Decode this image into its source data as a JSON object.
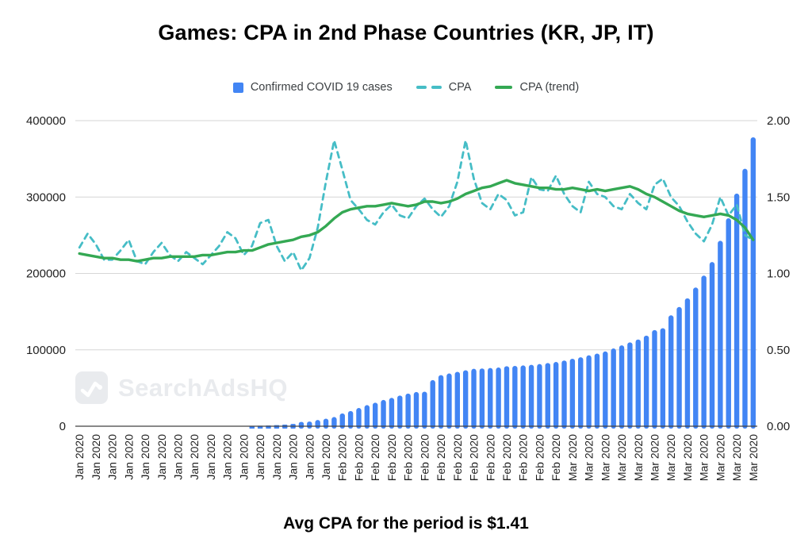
{
  "title": "Games: CPA in 2nd Phase Countries (KR, JP, IT)",
  "caption": "Avg CPA for the period is $1.41",
  "watermark": {
    "text": "SearchAdsHQ",
    "icon": "zigzag-line-chart-icon"
  },
  "legend": [
    {
      "label": "Confirmed COVID 19 cases",
      "swatch": "square",
      "color": "#4285F4"
    },
    {
      "label": "CPA",
      "swatch": "dashed-line",
      "color": "#46BDC6"
    },
    {
      "label": "CPA (trend)",
      "swatch": "solid-line",
      "color": "#34A853"
    }
  ],
  "colors": {
    "bar": "#4285F4",
    "cpa_line": "#46BDC6",
    "trend_line": "#34A853",
    "grid": "#d6d6d6",
    "axis_line": "#424242",
    "axis_text": "#1f1f1f",
    "watermark": "#e9ebee"
  },
  "chart_data": {
    "type": "combo-bar-line",
    "title": "Games: CPA in 2nd Phase Countries (KR, JP, IT)",
    "note": "Daily data Jan 1 - Mar 23 2020; x ticks show month-year on every 2nd day, rotated vertically",
    "grid": true,
    "legend_position": "top",
    "months": [
      {
        "label": "Jan 2020",
        "days": 31
      },
      {
        "label": "Feb 2020",
        "days": 29
      },
      {
        "label": "Mar 2020",
        "days": 23
      }
    ],
    "x_tick_every": 2,
    "left_axis": {
      "ticks": [
        "400000",
        "300000",
        "200000",
        "100000",
        "0"
      ],
      "range": [
        0,
        400000
      ]
    },
    "right_axis": {
      "ticks": [
        "2.00",
        "1.50",
        "1.00",
        "0.50",
        "0.00"
      ],
      "range": [
        0,
        2
      ]
    },
    "series": [
      {
        "name": "Confirmed COVID 19 cases",
        "type": "bar",
        "axis": "left",
        "values": [
          0,
          0,
          0,
          0,
          0,
          0,
          0,
          0,
          0,
          0,
          0,
          0,
          0,
          0,
          0,
          0,
          0,
          0,
          0,
          0,
          0,
          555,
          654,
          941,
          1434,
          2118,
          2927,
          5578,
          6166,
          8234,
          9927,
          12038,
          16787,
          19881,
          23892,
          27635,
          30817,
          34391,
          37120,
          40150,
          42762,
          44802,
          45221,
          60368,
          66885,
          69030,
          71224,
          73258,
          75136,
          75639,
          76197,
          76823,
          78579,
          78965,
          79568,
          80413,
          81395,
          82754,
          84120,
          86011,
          88369,
          90306,
          92840,
          95120,
          97882,
          101784,
          105821,
          109795,
          113561,
          118592,
          125865,
          128343,
          145193,
          156094,
          167446,
          181527,
          197142,
          214910,
          242708,
          272166,
          304524,
          336953,
          378231
        ]
      },
      {
        "name": "CPA",
        "type": "dashed-line",
        "axis": "right",
        "values": [
          1.17,
          1.26,
          1.19,
          1.09,
          1.09,
          1.15,
          1.22,
          1.08,
          1.06,
          1.14,
          1.2,
          1.12,
          1.08,
          1.14,
          1.1,
          1.06,
          1.12,
          1.18,
          1.27,
          1.23,
          1.12,
          1.18,
          1.33,
          1.35,
          1.18,
          1.08,
          1.14,
          1.02,
          1.1,
          1.3,
          1.6,
          1.87,
          1.68,
          1.48,
          1.42,
          1.35,
          1.32,
          1.4,
          1.45,
          1.38,
          1.36,
          1.44,
          1.49,
          1.42,
          1.37,
          1.44,
          1.6,
          1.87,
          1.62,
          1.46,
          1.42,
          1.52,
          1.48,
          1.38,
          1.4,
          1.63,
          1.55,
          1.54,
          1.64,
          1.52,
          1.44,
          1.4,
          1.6,
          1.52,
          1.5,
          1.44,
          1.42,
          1.52,
          1.46,
          1.42,
          1.58,
          1.62,
          1.5,
          1.44,
          1.34,
          1.26,
          1.21,
          1.32,
          1.5,
          1.38,
          1.45,
          1.25,
          1.22
        ]
      },
      {
        "name": "CPA (trend)",
        "type": "line",
        "axis": "right",
        "values": [
          1.13,
          1.12,
          1.11,
          1.1,
          1.1,
          1.09,
          1.09,
          1.08,
          1.09,
          1.1,
          1.1,
          1.11,
          1.11,
          1.11,
          1.11,
          1.12,
          1.12,
          1.13,
          1.14,
          1.14,
          1.15,
          1.15,
          1.17,
          1.19,
          1.2,
          1.21,
          1.22,
          1.24,
          1.25,
          1.27,
          1.31,
          1.36,
          1.4,
          1.42,
          1.43,
          1.44,
          1.44,
          1.45,
          1.46,
          1.45,
          1.44,
          1.45,
          1.47,
          1.47,
          1.46,
          1.47,
          1.49,
          1.52,
          1.54,
          1.56,
          1.57,
          1.59,
          1.61,
          1.59,
          1.58,
          1.57,
          1.56,
          1.56,
          1.55,
          1.55,
          1.56,
          1.55,
          1.54,
          1.55,
          1.54,
          1.55,
          1.56,
          1.57,
          1.55,
          1.52,
          1.5,
          1.47,
          1.44,
          1.41,
          1.39,
          1.38,
          1.37,
          1.38,
          1.39,
          1.38,
          1.35,
          1.3,
          1.22
        ]
      }
    ]
  }
}
